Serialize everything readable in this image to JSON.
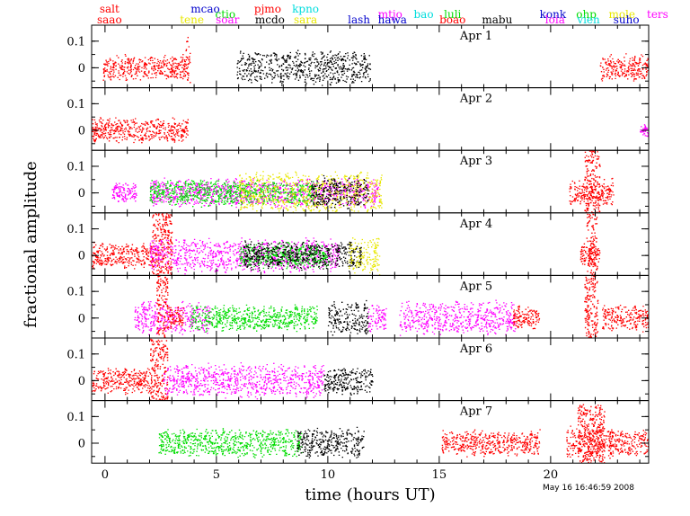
{
  "chart_data": {
    "type": "scatter",
    "xlabel": "time (hours UT)",
    "ylabel": "fractional amplitude",
    "xlim": [
      -0.6,
      24.4
    ],
    "ylim": [
      -0.075,
      0.16
    ],
    "x_ticks": [
      0,
      5,
      10,
      15,
      20
    ],
    "y_ticks": [
      0,
      0.1
    ],
    "timestamp": "May 16 16:46:59 2008",
    "colors": {
      "red": "#ff0000",
      "black": "#000000",
      "green": "#00dd00",
      "magenta": "#ff00ff",
      "yellow": "#e8e800",
      "cyan": "#00dddd",
      "blue": "#0000cc"
    },
    "sites": [
      {
        "name": "salt",
        "row": 0,
        "x": 0.2,
        "color": "#ff0000"
      },
      {
        "name": "saao",
        "row": 1,
        "x": 0.2,
        "color": "#ff0000"
      },
      {
        "name": "tene",
        "row": 1,
        "x": 3.9,
        "color": "#e8e800"
      },
      {
        "name": "mcao",
        "row": 0,
        "x": 4.5,
        "color": "#0000cc"
      },
      {
        "name": "ctio",
        "row": 0.5,
        "x": 5.4,
        "color": "#00dd00"
      },
      {
        "name": "soar",
        "row": 1,
        "x": 5.5,
        "color": "#ff00ff"
      },
      {
        "name": "pjmo",
        "row": 0,
        "x": 7.3,
        "color": "#ff0000"
      },
      {
        "name": "mcdo",
        "row": 1,
        "x": 7.4,
        "color": "#000000"
      },
      {
        "name": "kpno",
        "row": 0,
        "x": 9.0,
        "color": "#00dddd"
      },
      {
        "name": "sara",
        "row": 1,
        "x": 9.0,
        "color": "#e8e800"
      },
      {
        "name": "lash",
        "row": 1,
        "x": 11.4,
        "color": "#0000cc"
      },
      {
        "name": "mtjo",
        "row": 0.5,
        "x": 12.8,
        "color": "#ff00ff"
      },
      {
        "name": "hawa",
        "row": 1,
        "x": 12.9,
        "color": "#0000cc"
      },
      {
        "name": "bao",
        "row": 0.5,
        "x": 14.3,
        "color": "#00dddd"
      },
      {
        "name": "luli",
        "row": 0.5,
        "x": 15.6,
        "color": "#00dd00"
      },
      {
        "name": "boao",
        "row": 1,
        "x": 15.6,
        "color": "#ff0000"
      },
      {
        "name": "mabu",
        "row": 1,
        "x": 17.6,
        "color": "#000000"
      },
      {
        "name": "konk",
        "row": 0.5,
        "x": 20.1,
        "color": "#0000cc"
      },
      {
        "name": "loia",
        "row": 1,
        "x": 20.2,
        "color": "#ff00ff"
      },
      {
        "name": "ohp",
        "row": 0.5,
        "x": 21.6,
        "color": "#00dd00"
      },
      {
        "name": "vien",
        "row": 1,
        "x": 21.7,
        "color": "#00dddd"
      },
      {
        "name": "mole",
        "row": 0.5,
        "x": 23.2,
        "color": "#e8e800"
      },
      {
        "name": "suho",
        "row": 1,
        "x": 23.4,
        "color": "#0000cc"
      },
      {
        "name": "ters",
        "row": 0.5,
        "x": 24.8,
        "color": "#ff00ff"
      }
    ],
    "panels": [
      {
        "label": "Apr 1",
        "segments": [
          {
            "color": "red",
            "x": [
              -0.1,
              3.8
            ],
            "amp": 0.045
          },
          {
            "color": "red",
            "x": [
              3.6,
              3.8
            ],
            "amp": 0.12
          },
          {
            "color": "black",
            "x": [
              5.9,
              11.9
            ],
            "amp": 0.06
          },
          {
            "color": "red",
            "x": [
              22.2,
              24.4
            ],
            "amp": 0.045
          }
        ]
      },
      {
        "label": "Apr 2",
        "segments": [
          {
            "color": "red",
            "x": [
              -0.6,
              3.7
            ],
            "amp": 0.045
          },
          {
            "color": "magenta",
            "x": [
              24.0,
              24.4
            ],
            "amp": 0.02
          }
        ]
      },
      {
        "label": "Apr 3",
        "segments": [
          {
            "color": "magenta",
            "x": [
              0.3,
              1.4
            ],
            "amp": 0.03
          },
          {
            "color": "magenta",
            "x": [
              2.0,
              12.3
            ],
            "amp": 0.05
          },
          {
            "color": "green",
            "x": [
              2.0,
              9.5
            ],
            "amp": 0.045
          },
          {
            "color": "yellow",
            "x": [
              6.0,
              12.4
            ],
            "amp": 0.08
          },
          {
            "color": "black",
            "x": [
              9.2,
              11.8
            ],
            "amp": 0.06
          },
          {
            "color": "red",
            "x": [
              20.8,
              22.8
            ],
            "amp": 0.045
          },
          {
            "color": "red",
            "x": [
              21.5,
              22.2
            ],
            "amp": 0.16
          }
        ]
      },
      {
        "label": "Apr 4",
        "segments": [
          {
            "color": "red",
            "x": [
              -0.6,
              2.2
            ],
            "amp": 0.045
          },
          {
            "color": "red",
            "x": [
              2.1,
              3.0
            ],
            "amp": 0.16
          },
          {
            "color": "magenta",
            "x": [
              2.0,
              10.5
            ],
            "amp": 0.06
          },
          {
            "color": "green",
            "x": [
              6.0,
              10.0
            ],
            "amp": 0.045
          },
          {
            "color": "black",
            "x": [
              6.2,
              11.5
            ],
            "amp": 0.05
          },
          {
            "color": "yellow",
            "x": [
              10.9,
              12.3
            ],
            "amp": 0.07
          },
          {
            "color": "red",
            "x": [
              21.3,
              22.2
            ],
            "amp": 0.045
          },
          {
            "color": "red",
            "x": [
              21.6,
              22.1
            ],
            "amp": 0.16
          }
        ]
      },
      {
        "label": "Apr 5",
        "segments": [
          {
            "color": "magenta",
            "x": [
              1.3,
              4.7
            ],
            "amp": 0.06
          },
          {
            "color": "red",
            "x": [
              2.3,
              2.8
            ],
            "amp": 0.16
          },
          {
            "color": "red",
            "x": [
              2.8,
              3.5
            ],
            "amp": 0.04
          },
          {
            "color": "green",
            "x": [
              3.8,
              9.5
            ],
            "amp": 0.045
          },
          {
            "color": "black",
            "x": [
              10.0,
              11.8
            ],
            "amp": 0.06
          },
          {
            "color": "magenta",
            "x": [
              11.8,
              12.6
            ],
            "amp": 0.05
          },
          {
            "color": "magenta",
            "x": [
              13.2,
              18.4
            ],
            "amp": 0.06
          },
          {
            "color": "red",
            "x": [
              18.3,
              19.5
            ],
            "amp": 0.04
          },
          {
            "color": "red",
            "x": [
              21.5,
              22.1
            ],
            "amp": 0.16
          },
          {
            "color": "red",
            "x": [
              22.3,
              24.4
            ],
            "amp": 0.045
          }
        ]
      },
      {
        "label": "Apr 6",
        "segments": [
          {
            "color": "red",
            "x": [
              -0.6,
              2.0
            ],
            "amp": 0.045
          },
          {
            "color": "red",
            "x": [
              2.0,
              2.8
            ],
            "amp": 0.16
          },
          {
            "color": "magenta",
            "x": [
              2.6,
              9.8
            ],
            "amp": 0.06
          },
          {
            "color": "black",
            "x": [
              9.8,
              12.0
            ],
            "amp": 0.05
          }
        ]
      },
      {
        "label": "Apr 7",
        "segments": [
          {
            "color": "green",
            "x": [
              2.4,
              8.8
            ],
            "amp": 0.05
          },
          {
            "color": "black",
            "x": [
              8.6,
              11.6
            ],
            "amp": 0.055
          },
          {
            "color": "red",
            "x": [
              15.1,
              19.5
            ],
            "amp": 0.045
          },
          {
            "color": "red",
            "x": [
              20.7,
              22.8
            ],
            "amp": 0.06
          },
          {
            "color": "red",
            "x": [
              21.2,
              22.4
            ],
            "amp": 0.14
          },
          {
            "color": "red",
            "x": [
              22.6,
              24.4
            ],
            "amp": 0.045
          }
        ]
      }
    ]
  }
}
